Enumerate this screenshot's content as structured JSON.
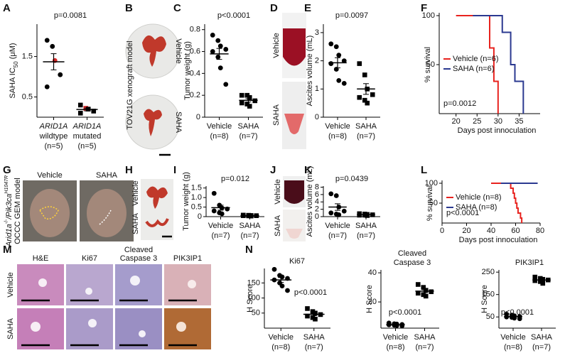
{
  "panel_letters": [
    "A",
    "B",
    "C",
    "D",
    "E",
    "F",
    "G",
    "H",
    "I",
    "J",
    "K",
    "L",
    "M",
    "N"
  ],
  "photos": {
    "B": {
      "model": "TOV21G xenograft model",
      "rows": [
        "Vehicle",
        "SAHA"
      ]
    },
    "D": {
      "rows": [
        "Vehicle",
        "SAHA"
      ]
    },
    "G": {
      "cols": [
        "Vehicle",
        "SAHA"
      ],
      "genotype": [
        "Arid1a",
        "-/-",
        "/Pik3ca",
        "H1047R"
      ],
      "model": "OCCC GEM model"
    },
    "H": {
      "rows": [
        "Vehicle",
        "SAHA"
      ]
    },
    "J": {
      "rows": [
        "Vehicle",
        "SAHA"
      ]
    },
    "M": {
      "cols": [
        [
          "H&E"
        ],
        [
          "Ki67"
        ],
        [
          "Cleaved",
          "Caspase 3"
        ],
        [
          "PIK3IP1"
        ]
      ],
      "rows": [
        "Vehicle",
        "SAHA"
      ]
    }
  },
  "chart_data": [
    {
      "type": "dot",
      "ylabel": [
        "SAHA IC",
        "50",
        " (μM)"
      ],
      "categories": [
        [
          "ARID1A",
          "wildtype",
          "(n=5)"
        ],
        [
          "ARID1A",
          "mutated",
          "(n=5)"
        ]
      ],
      "italic_first_line": true,
      "values": [
        [
          1.9,
          1.75,
          1.4,
          1.05,
          0.75
        ],
        [
          0.3,
          0.22,
          0.2,
          0.15,
          0.1
        ]
      ],
      "means": [
        1.37,
        0.19
      ],
      "errors": [
        0.2,
        0.035
      ],
      "markers": [
        "circle",
        "square"
      ],
      "color": "#000000",
      "highlight": [
        [
          2
        ],
        [
          1
        ]
      ],
      "highlight_color": "#d62728",
      "annotation": "p=0.0081",
      "ylim": [
        0,
        2.3
      ],
      "yticks": [
        0.5,
        1.5
      ]
    },
    {
      "type": "dot",
      "ylabel": [
        "Tumor weight (g)"
      ],
      "categories": [
        [
          "Vehicle",
          "(n=8)"
        ],
        [
          "SAHA",
          "(n=7)"
        ]
      ],
      "values": [
        [
          0.75,
          0.7,
          0.65,
          0.62,
          0.6,
          0.55,
          0.45,
          0.3
        ],
        [
          0.2,
          0.2,
          0.18,
          0.15,
          0.13,
          0.12,
          0.1
        ]
      ],
      "means": [
        0.578,
        0.154
      ],
      "errors": [
        0.05,
        0.015
      ],
      "markers": [
        "circle",
        "square"
      ],
      "color": "#000000",
      "annotation": "p<0.0001",
      "ylim": [
        0,
        0.85
      ],
      "yticks": [
        0,
        0.2,
        0.4,
        0.6,
        0.8
      ]
    },
    {
      "type": "dot",
      "ylabel": [
        "Ascites volume (mL)"
      ],
      "categories": [
        [
          "Vehicle",
          "(n=8)"
        ],
        [
          "SAHA",
          "(n=7)"
        ]
      ],
      "values": [
        [
          2.6,
          2.5,
          2.2,
          2.0,
          1.9,
          1.7,
          1.3,
          1.2
        ],
        [
          1.9,
          1.5,
          1.0,
          0.8,
          0.7,
          0.6,
          0.5
        ]
      ],
      "means": [
        1.93,
        1.0
      ],
      "errors": [
        0.18,
        0.19
      ],
      "markers": [
        "circle",
        "square"
      ],
      "color": "#000000",
      "annotation": "p=0.0097",
      "ylim": [
        0,
        3.3
      ],
      "yticks": [
        0,
        1,
        2,
        3
      ]
    },
    {
      "type": "survival",
      "ylabel": "% survival",
      "xlabel": "Days post innoculation",
      "legend": "center left",
      "annotation": "p=0.0012",
      "series": [
        {
          "name": "Vehicle (n=6)",
          "color": "#e8231f",
          "x": [
            20,
            28,
            29,
            30
          ],
          "values": [
            100,
            67,
            33,
            0
          ]
        },
        {
          "name": "SAHA (n=6)",
          "color": "#2b3990",
          "x": [
            24,
            31,
            33,
            34,
            36
          ],
          "values": [
            100,
            83,
            50,
            33,
            0
          ]
        }
      ],
      "xlim": [
        16,
        40
      ],
      "xticks": [
        20,
        25,
        30,
        35
      ],
      "ylim": [
        0,
        100
      ],
      "yticks": [
        50,
        100
      ]
    },
    {
      "type": "dot",
      "ylabel": [
        "Tumor weight (g)"
      ],
      "categories": [
        [
          "Vehicle",
          "(n=7)"
        ],
        [
          "SAHA",
          "(n=7)"
        ]
      ],
      "values": [
        [
          1.22,
          0.6,
          0.45,
          0.4,
          0.3,
          0.2,
          0.15
        ],
        [
          0.08,
          0.07,
          0.06,
          0.05,
          0.05,
          0.04,
          0.03
        ]
      ],
      "means": [
        0.47,
        0.054
      ],
      "errors": [
        0.13,
        0.006
      ],
      "markers": [
        "circle",
        "square"
      ],
      "color": "#000000",
      "annotation": "p=0.012",
      "ylim": [
        0,
        1.6
      ],
      "yticks": [
        0,
        0.5,
        {
          "value": 1,
          "label": "1.0"
        },
        1.5
      ]
    },
    {
      "type": "dot",
      "ylabel": [
        "Ascites volume (mL)"
      ],
      "categories": [
        [
          "Vehicle",
          "(n=7)"
        ],
        [
          "SAHA",
          "(n=7)"
        ]
      ],
      "values": [
        [
          6.2,
          5.7,
          2.6,
          1.5,
          1.0,
          0.7,
          0.5
        ],
        [
          0.8,
          0.7,
          0.6,
          0.5,
          0.4,
          0.4,
          0.3
        ]
      ],
      "means": [
        2.6,
        0.53
      ],
      "errors": [
        0.9,
        0.07
      ],
      "markers": [
        "circle",
        "square"
      ],
      "color": "#000000",
      "annotation": "p=0.0439",
      "ylim": [
        0,
        8.3
      ],
      "yticks": [
        0,
        2,
        4,
        6,
        8
      ]
    },
    {
      "type": "survival",
      "ylabel": "% survival",
      "xlabel": "Days post innoculation",
      "legend": "center left",
      "annotation": "p<0.0001",
      "series": [
        {
          "name": "Vehicle (n=8)",
          "color": "#e8231f",
          "x": [
            40,
            56,
            58,
            59,
            60,
            61,
            62,
            64,
            65
          ],
          "values": [
            100,
            87.5,
            75,
            62.5,
            50,
            37.5,
            25,
            12.5,
            0
          ]
        },
        {
          "name": "SAHA (n=8)",
          "color": "#2b3990",
          "x": [
            48,
            78
          ],
          "values": [
            100,
            100
          ]
        }
      ],
      "xlim": [
        0,
        80
      ],
      "xticks": [
        0,
        20,
        40,
        60,
        80
      ],
      "ylim": [
        0,
        100
      ],
      "yticks": [
        50,
        100
      ]
    },
    {
      "type": "dot",
      "title": [
        "Ki67"
      ],
      "ylabel": [
        "H Score"
      ],
      "categories": [
        [
          "Vehicle",
          "(n=8)"
        ],
        [
          "SAHA",
          "(n=7)"
        ]
      ],
      "values": [
        [
          195,
          175,
          170,
          165,
          160,
          150,
          140,
          125
        ],
        [
          65,
          55,
          50,
          45,
          40,
          35,
          30
        ]
      ],
      "means": [
        160,
        46
      ],
      "errors": [
        8,
        4.6
      ],
      "markers": [
        "circle",
        "square"
      ],
      "color": "#000000",
      "annotation": "p<0.0001",
      "ylim": [
        0,
        198
      ],
      "yticks": [
        50,
        100,
        150
      ]
    },
    {
      "type": "dot",
      "title": [
        "Cleaved",
        "Caspase 3"
      ],
      "ylabel": [
        "H Score"
      ],
      "categories": [
        [
          "Vehicle",
          "(n=8)"
        ],
        [
          "SAHA",
          "(n=7)"
        ]
      ],
      "values": [
        [
          5.5,
          5,
          4.8,
          4.5,
          4.3,
          4,
          3.8,
          3.6
        ],
        [
          32,
          30,
          28,
          27,
          26,
          25,
          24
        ]
      ],
      "means": [
        4.4,
        27.4
      ],
      "errors": [
        0.23,
        1
      ],
      "markers": [
        "circle",
        "square"
      ],
      "color": "#000000",
      "annotation": "p<0.0001",
      "ylim": [
        2,
        42
      ],
      "yticks": [
        20,
        40
      ]
    },
    {
      "type": "dot",
      "title": [
        "PIK3IP1"
      ],
      "ylabel": [
        "H Score"
      ],
      "categories": [
        [
          "Vehicle",
          "(n=8)"
        ],
        [
          "SAHA",
          "(n=7)"
        ]
      ],
      "values": [
        [
          62,
          58,
          55,
          52,
          50,
          48,
          45,
          42
        ],
        [
          228,
          222,
          218,
          215,
          212,
          208,
          200
        ]
      ],
      "means": [
        51.5,
        214.7
      ],
      "errors": [
        2.3,
        3.5
      ],
      "markers": [
        "circle",
        "square"
      ],
      "color": "#000000",
      "annotation": "p<0.0001",
      "ylim": [
        0,
        260
      ],
      "yticks": [
        50,
        150,
        250
      ]
    }
  ]
}
